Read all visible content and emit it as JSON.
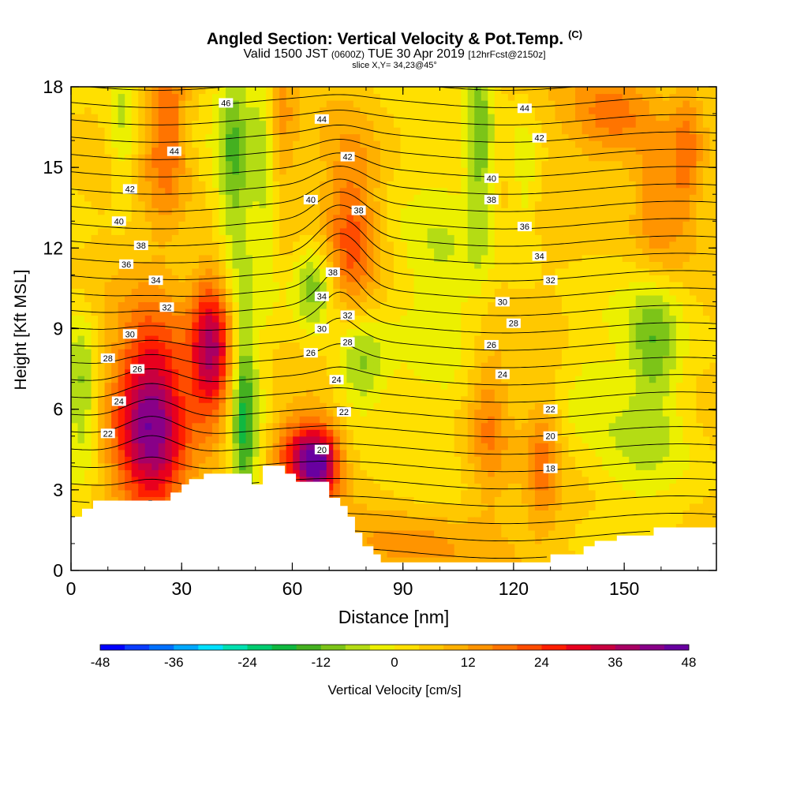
{
  "header": {
    "title": "Angled Section: Vertical Velocity & Pot.Temp.",
    "title_unit": "(C)",
    "valid_prefix": "Valid 1500 JST",
    "valid_z": "(0600Z)",
    "valid_date": "TUE 30 Apr 2019",
    "forecast": "[12hrFcst@2150z]",
    "slice": "slice X,Y= 34,23@45°"
  },
  "chart_data": {
    "type": "heatmap",
    "xlabel": "Distance [nm]",
    "ylabel": "Height [Kft MSL]",
    "xlim": [
      0,
      175
    ],
    "ylim": [
      0,
      18
    ],
    "x_ticks": [
      "0",
      "30",
      "60",
      "90",
      "120",
      "150"
    ],
    "y_ticks": [
      "0",
      "3",
      "6",
      "9",
      "12",
      "15",
      "18"
    ],
    "colorbar": {
      "label": "Vertical Velocity [cm/s]",
      "min": -48,
      "max": 48,
      "tick_labels": [
        "-48",
        "-36",
        "-24",
        "-12",
        "0",
        "12",
        "24",
        "36",
        "48"
      ],
      "colors": [
        "#0000ff",
        "#0a3cff",
        "#0070ff",
        "#00a8ff",
        "#00e0ff",
        "#00e0b0",
        "#00cc70",
        "#10b840",
        "#44b020",
        "#7cc418",
        "#b4dc14",
        "#ecf000",
        "#ffe000",
        "#ffc800",
        "#ffb000",
        "#ff9400",
        "#ff7400",
        "#ff4c00",
        "#ff1e00",
        "#e8001e",
        "#c80040",
        "#a80064",
        "#880088",
        "#6800a0"
      ]
    },
    "theta_contour_labels": [
      {
        "x": 42,
        "z": 17.4,
        "v": "46"
      },
      {
        "x": 28,
        "z": 15.6,
        "v": "44"
      },
      {
        "x": 16,
        "z": 14.2,
        "v": "42"
      },
      {
        "x": 13,
        "z": 13.0,
        "v": "40"
      },
      {
        "x": 19,
        "z": 12.1,
        "v": "38"
      },
      {
        "x": 15,
        "z": 11.4,
        "v": "36"
      },
      {
        "x": 23,
        "z": 10.8,
        "v": "34"
      },
      {
        "x": 26,
        "z": 9.8,
        "v": "32"
      },
      {
        "x": 16,
        "z": 8.8,
        "v": "30"
      },
      {
        "x": 10,
        "z": 7.9,
        "v": "28"
      },
      {
        "x": 18,
        "z": 7.5,
        "v": "26"
      },
      {
        "x": 13,
        "z": 6.3,
        "v": "24"
      },
      {
        "x": 10,
        "z": 5.1,
        "v": "22"
      },
      {
        "x": 68,
        "z": 16.8,
        "v": "44"
      },
      {
        "x": 75,
        "z": 15.4,
        "v": "42"
      },
      {
        "x": 65,
        "z": 13.8,
        "v": "40"
      },
      {
        "x": 78,
        "z": 13.4,
        "v": "38"
      },
      {
        "x": 71,
        "z": 11.1,
        "v": "38"
      },
      {
        "x": 68,
        "z": 10.2,
        "v": "34"
      },
      {
        "x": 75,
        "z": 9.5,
        "v": "32"
      },
      {
        "x": 68,
        "z": 9.0,
        "v": "30"
      },
      {
        "x": 75,
        "z": 8.5,
        "v": "28"
      },
      {
        "x": 65,
        "z": 8.1,
        "v": "26"
      },
      {
        "x": 72,
        "z": 7.1,
        "v": "24"
      },
      {
        "x": 74,
        "z": 5.9,
        "v": "22"
      },
      {
        "x": 68,
        "z": 4.5,
        "v": "20"
      },
      {
        "x": 123,
        "z": 17.2,
        "v": "44"
      },
      {
        "x": 127,
        "z": 16.1,
        "v": "42"
      },
      {
        "x": 114,
        "z": 14.6,
        "v": "40"
      },
      {
        "x": 114,
        "z": 13.8,
        "v": "38"
      },
      {
        "x": 123,
        "z": 12.8,
        "v": "36"
      },
      {
        "x": 127,
        "z": 11.7,
        "v": "34"
      },
      {
        "x": 130,
        "z": 10.8,
        "v": "32"
      },
      {
        "x": 117,
        "z": 10.0,
        "v": "30"
      },
      {
        "x": 120,
        "z": 9.2,
        "v": "28"
      },
      {
        "x": 114,
        "z": 8.4,
        "v": "26"
      },
      {
        "x": 117,
        "z": 7.3,
        "v": "24"
      },
      {
        "x": 130,
        "z": 6.0,
        "v": "22"
      },
      {
        "x": 130,
        "z": 5.0,
        "v": "20"
      },
      {
        "x": 130,
        "z": 3.8,
        "v": "18"
      }
    ],
    "terrain_profile": [
      [
        0,
        2.0
      ],
      [
        3,
        2.0
      ],
      [
        3,
        2.3
      ],
      [
        6,
        2.3
      ],
      [
        6,
        2.6
      ],
      [
        24,
        2.6
      ],
      [
        24,
        2.6
      ],
      [
        27,
        2.6
      ],
      [
        27,
        2.9
      ],
      [
        30,
        2.9
      ],
      [
        30,
        3.2
      ],
      [
        32,
        3.2
      ],
      [
        32,
        3.4
      ],
      [
        36,
        3.4
      ],
      [
        36,
        3.6
      ],
      [
        49,
        3.6
      ],
      [
        49,
        3.2
      ],
      [
        52,
        3.2
      ],
      [
        52,
        3.9
      ],
      [
        58,
        3.9
      ],
      [
        58,
        3.6
      ],
      [
        61,
        3.6
      ],
      [
        61,
        3.3
      ],
      [
        70,
        3.3
      ],
      [
        70,
        2.7
      ],
      [
        73,
        2.7
      ],
      [
        73,
        2.4
      ],
      [
        75,
        2.4
      ],
      [
        75,
        2.0
      ],
      [
        77,
        2.0
      ],
      [
        77,
        1.4
      ],
      [
        79,
        1.4
      ],
      [
        79,
        0.9
      ],
      [
        82,
        0.9
      ],
      [
        82,
        0.6
      ],
      [
        84,
        0.6
      ],
      [
        84,
        0.3
      ],
      [
        101,
        0.3
      ],
      [
        101,
        0.3
      ],
      [
        130,
        0.3
      ],
      [
        130,
        0.6
      ],
      [
        139,
        0.6
      ],
      [
        139,
        0.9
      ],
      [
        142,
        0.9
      ],
      [
        142,
        1.1
      ],
      [
        148,
        1.1
      ],
      [
        148,
        1.3
      ],
      [
        158,
        1.3
      ],
      [
        158,
        1.6
      ],
      [
        175,
        1.6
      ]
    ],
    "velocity_features": [
      {
        "x": 22,
        "z": 5.6,
        "sx": 7,
        "sz": 2.6,
        "w": 38
      },
      {
        "x": 38,
        "z": 8.2,
        "sx": 4,
        "sz": 2.0,
        "w": 34
      },
      {
        "x": 67,
        "z": 4.0,
        "sx": 4,
        "sz": 1.0,
        "w": 40
      },
      {
        "x": 60,
        "z": 4.4,
        "sx": 4,
        "sz": 1.0,
        "w": 18
      },
      {
        "x": 47,
        "z": 5.6,
        "sx": 2.5,
        "sz": 3.0,
        "w": -20
      },
      {
        "x": 44,
        "z": 15.5,
        "sx": 3,
        "sz": 3.0,
        "w": -14
      },
      {
        "x": 53,
        "z": 16.0,
        "sx": 3,
        "sz": 3.5,
        "w": -14
      },
      {
        "x": 26,
        "z": 16.5,
        "sx": 4,
        "sz": 2.5,
        "w": 16
      },
      {
        "x": 56,
        "z": 16.5,
        "sx": 3,
        "sz": 2.5,
        "w": 14
      },
      {
        "x": 76,
        "z": 12.5,
        "sx": 5,
        "sz": 2.5,
        "w": 16
      },
      {
        "x": 66,
        "z": 10.6,
        "sx": 4,
        "sz": 1.2,
        "w": -16
      },
      {
        "x": 78,
        "z": 7.7,
        "sx": 5,
        "sz": 1.4,
        "w": -16
      },
      {
        "x": 3,
        "z": 6.5,
        "sx": 3,
        "sz": 2.0,
        "w": -14
      },
      {
        "x": 14,
        "z": 16.8,
        "sx": 3,
        "sz": 2.0,
        "w": -10
      },
      {
        "x": 111,
        "z": 16.0,
        "sx": 2.5,
        "sz": 3.0,
        "w": -14
      },
      {
        "x": 123,
        "z": 14.5,
        "sx": 3,
        "sz": 2.0,
        "w": -8
      },
      {
        "x": 158,
        "z": 8.5,
        "sx": 5,
        "sz": 1.8,
        "w": -14
      },
      {
        "x": 140,
        "z": 7.0,
        "sx": 6,
        "sz": 2.0,
        "w": -6
      },
      {
        "x": 113,
        "z": 5.5,
        "sx": 4,
        "sz": 2.0,
        "w": 12
      },
      {
        "x": 128,
        "z": 4.0,
        "sx": 3,
        "sz": 1.6,
        "w": 12
      },
      {
        "x": 159,
        "z": 13.5,
        "sx": 5,
        "sz": 2.0,
        "w": 14
      },
      {
        "x": 167,
        "z": 15.5,
        "sx": 3,
        "sz": 2.0,
        "w": 12
      },
      {
        "x": 147,
        "z": 17.0,
        "sx": 8,
        "sz": 1.4,
        "w": 14
      },
      {
        "x": 155,
        "z": 4.5,
        "sx": 8,
        "sz": 1.5,
        "w": -6
      },
      {
        "x": 100,
        "z": 11.0,
        "sx": 8,
        "sz": 2.5,
        "w": -6
      },
      {
        "x": 96,
        "z": 1.0,
        "sx": 15,
        "sz": 1.0,
        "w": 10
      }
    ]
  }
}
